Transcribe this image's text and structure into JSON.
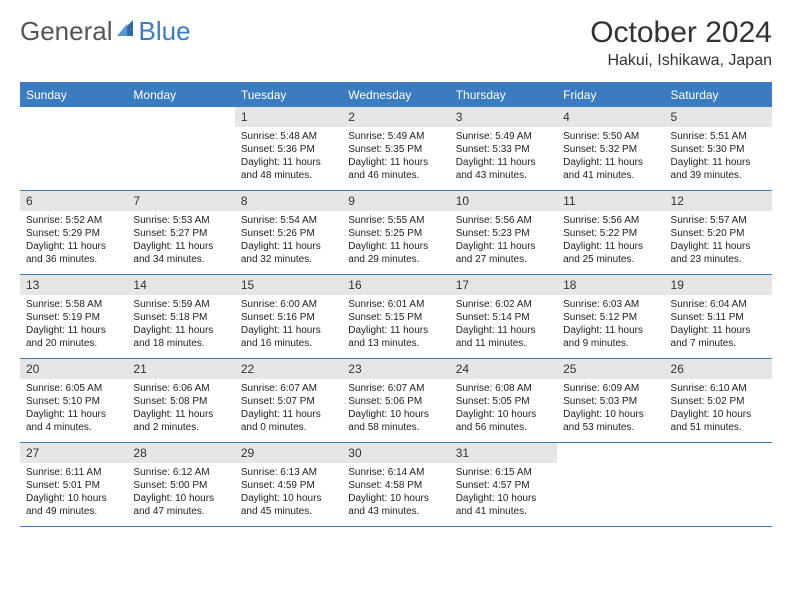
{
  "logo": {
    "part1": "General",
    "part2": "Blue"
  },
  "title": "October 2024",
  "location": "Hakui, Ishikawa, Japan",
  "colors": {
    "header_bg": "#3b7bbf",
    "header_text": "#ffffff",
    "daynum_bg": "#e6e6e6",
    "rule": "#3b7bbf",
    "body_text": "#222222",
    "logo_grey": "#555555",
    "logo_blue": "#3b7bbf"
  },
  "dow": [
    "Sunday",
    "Monday",
    "Tuesday",
    "Wednesday",
    "Thursday",
    "Friday",
    "Saturday"
  ],
  "weeks": [
    [
      null,
      null,
      {
        "n": "1",
        "sr": "Sunrise: 5:48 AM",
        "ss": "Sunset: 5:36 PM",
        "dl": "Daylight: 11 hours and 48 minutes."
      },
      {
        "n": "2",
        "sr": "Sunrise: 5:49 AM",
        "ss": "Sunset: 5:35 PM",
        "dl": "Daylight: 11 hours and 46 minutes."
      },
      {
        "n": "3",
        "sr": "Sunrise: 5:49 AM",
        "ss": "Sunset: 5:33 PM",
        "dl": "Daylight: 11 hours and 43 minutes."
      },
      {
        "n": "4",
        "sr": "Sunrise: 5:50 AM",
        "ss": "Sunset: 5:32 PM",
        "dl": "Daylight: 11 hours and 41 minutes."
      },
      {
        "n": "5",
        "sr": "Sunrise: 5:51 AM",
        "ss": "Sunset: 5:30 PM",
        "dl": "Daylight: 11 hours and 39 minutes."
      }
    ],
    [
      {
        "n": "6",
        "sr": "Sunrise: 5:52 AM",
        "ss": "Sunset: 5:29 PM",
        "dl": "Daylight: 11 hours and 36 minutes."
      },
      {
        "n": "7",
        "sr": "Sunrise: 5:53 AM",
        "ss": "Sunset: 5:27 PM",
        "dl": "Daylight: 11 hours and 34 minutes."
      },
      {
        "n": "8",
        "sr": "Sunrise: 5:54 AM",
        "ss": "Sunset: 5:26 PM",
        "dl": "Daylight: 11 hours and 32 minutes."
      },
      {
        "n": "9",
        "sr": "Sunrise: 5:55 AM",
        "ss": "Sunset: 5:25 PM",
        "dl": "Daylight: 11 hours and 29 minutes."
      },
      {
        "n": "10",
        "sr": "Sunrise: 5:56 AM",
        "ss": "Sunset: 5:23 PM",
        "dl": "Daylight: 11 hours and 27 minutes."
      },
      {
        "n": "11",
        "sr": "Sunrise: 5:56 AM",
        "ss": "Sunset: 5:22 PM",
        "dl": "Daylight: 11 hours and 25 minutes."
      },
      {
        "n": "12",
        "sr": "Sunrise: 5:57 AM",
        "ss": "Sunset: 5:20 PM",
        "dl": "Daylight: 11 hours and 23 minutes."
      }
    ],
    [
      {
        "n": "13",
        "sr": "Sunrise: 5:58 AM",
        "ss": "Sunset: 5:19 PM",
        "dl": "Daylight: 11 hours and 20 minutes."
      },
      {
        "n": "14",
        "sr": "Sunrise: 5:59 AM",
        "ss": "Sunset: 5:18 PM",
        "dl": "Daylight: 11 hours and 18 minutes."
      },
      {
        "n": "15",
        "sr": "Sunrise: 6:00 AM",
        "ss": "Sunset: 5:16 PM",
        "dl": "Daylight: 11 hours and 16 minutes."
      },
      {
        "n": "16",
        "sr": "Sunrise: 6:01 AM",
        "ss": "Sunset: 5:15 PM",
        "dl": "Daylight: 11 hours and 13 minutes."
      },
      {
        "n": "17",
        "sr": "Sunrise: 6:02 AM",
        "ss": "Sunset: 5:14 PM",
        "dl": "Daylight: 11 hours and 11 minutes."
      },
      {
        "n": "18",
        "sr": "Sunrise: 6:03 AM",
        "ss": "Sunset: 5:12 PM",
        "dl": "Daylight: 11 hours and 9 minutes."
      },
      {
        "n": "19",
        "sr": "Sunrise: 6:04 AM",
        "ss": "Sunset: 5:11 PM",
        "dl": "Daylight: 11 hours and 7 minutes."
      }
    ],
    [
      {
        "n": "20",
        "sr": "Sunrise: 6:05 AM",
        "ss": "Sunset: 5:10 PM",
        "dl": "Daylight: 11 hours and 4 minutes."
      },
      {
        "n": "21",
        "sr": "Sunrise: 6:06 AM",
        "ss": "Sunset: 5:08 PM",
        "dl": "Daylight: 11 hours and 2 minutes."
      },
      {
        "n": "22",
        "sr": "Sunrise: 6:07 AM",
        "ss": "Sunset: 5:07 PM",
        "dl": "Daylight: 11 hours and 0 minutes."
      },
      {
        "n": "23",
        "sr": "Sunrise: 6:07 AM",
        "ss": "Sunset: 5:06 PM",
        "dl": "Daylight: 10 hours and 58 minutes."
      },
      {
        "n": "24",
        "sr": "Sunrise: 6:08 AM",
        "ss": "Sunset: 5:05 PM",
        "dl": "Daylight: 10 hours and 56 minutes."
      },
      {
        "n": "25",
        "sr": "Sunrise: 6:09 AM",
        "ss": "Sunset: 5:03 PM",
        "dl": "Daylight: 10 hours and 53 minutes."
      },
      {
        "n": "26",
        "sr": "Sunrise: 6:10 AM",
        "ss": "Sunset: 5:02 PM",
        "dl": "Daylight: 10 hours and 51 minutes."
      }
    ],
    [
      {
        "n": "27",
        "sr": "Sunrise: 6:11 AM",
        "ss": "Sunset: 5:01 PM",
        "dl": "Daylight: 10 hours and 49 minutes."
      },
      {
        "n": "28",
        "sr": "Sunrise: 6:12 AM",
        "ss": "Sunset: 5:00 PM",
        "dl": "Daylight: 10 hours and 47 minutes."
      },
      {
        "n": "29",
        "sr": "Sunrise: 6:13 AM",
        "ss": "Sunset: 4:59 PM",
        "dl": "Daylight: 10 hours and 45 minutes."
      },
      {
        "n": "30",
        "sr": "Sunrise: 6:14 AM",
        "ss": "Sunset: 4:58 PM",
        "dl": "Daylight: 10 hours and 43 minutes."
      },
      {
        "n": "31",
        "sr": "Sunrise: 6:15 AM",
        "ss": "Sunset: 4:57 PM",
        "dl": "Daylight: 10 hours and 41 minutes."
      },
      null,
      null
    ]
  ]
}
